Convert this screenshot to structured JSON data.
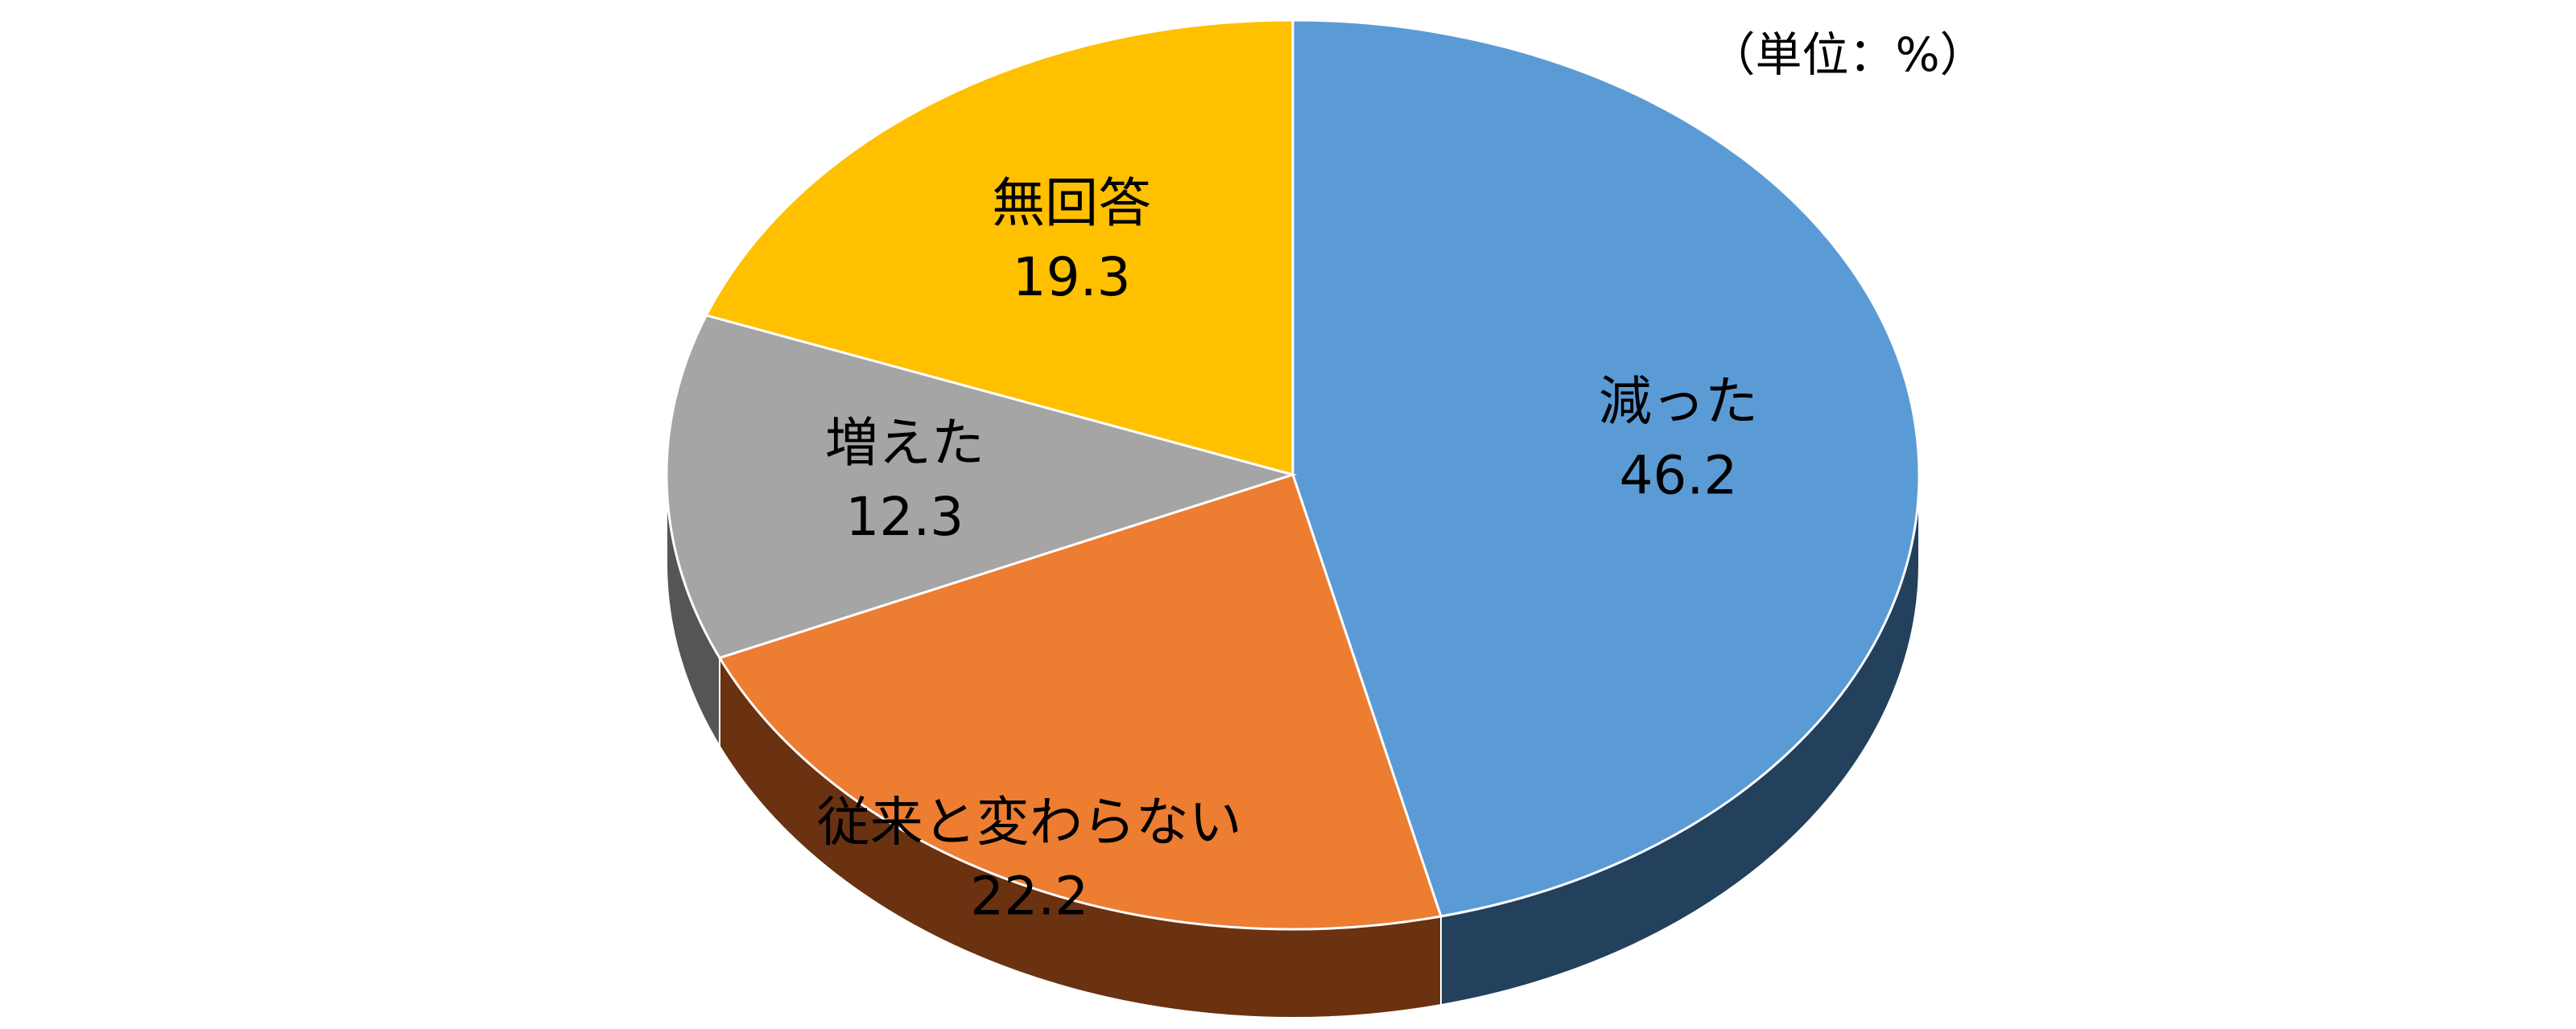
{
  "chart_data": {
    "type": "pie3d",
    "unit_label": "（単位：%）",
    "categories": [
      "減った",
      "従来と変わらない",
      "増えた",
      "無回答"
    ],
    "values": [
      46.2,
      22.2,
      12.3,
      19.3
    ],
    "colors": [
      "#5b9bd5",
      "#ed7d31",
      "#a5a5a5",
      "#ffc000"
    ],
    "side_colors": [
      "#23405c",
      "#6a3210",
      "#555555",
      "#7a5c00"
    ]
  }
}
